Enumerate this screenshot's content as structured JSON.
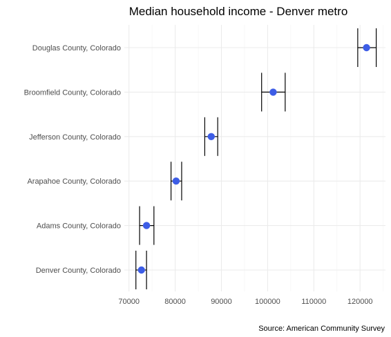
{
  "chart_data": {
    "type": "scatter",
    "title": "Median household income - Denver metro",
    "caption": "Source: American Community Survey",
    "xlabel": "",
    "ylabel": "",
    "xlim": [
      69000,
      125500
    ],
    "x_ticks": [
      70000,
      80000,
      90000,
      100000,
      110000,
      120000
    ],
    "x_tick_labels": [
      "70000",
      "80000",
      "90000",
      "100000",
      "110000",
      "120000"
    ],
    "grid": true,
    "point_color": "#3d5de6",
    "errorbar_color": "#000000",
    "points": [
      {
        "label": "Douglas County, Colorado",
        "estimate": 121400,
        "low": 119500,
        "high": 123500
      },
      {
        "label": "Broomfield County, Colorado",
        "estimate": 101200,
        "low": 98700,
        "high": 103800
      },
      {
        "label": "Jefferson County, Colorado",
        "estimate": 87800,
        "low": 86400,
        "high": 89200
      },
      {
        "label": "Arapahoe County, Colorado",
        "estimate": 80200,
        "low": 79100,
        "high": 81400
      },
      {
        "label": "Adams County, Colorado",
        "estimate": 73800,
        "low": 72300,
        "high": 75400
      },
      {
        "label": "Denver County, Colorado",
        "estimate": 72700,
        "low": 71500,
        "high": 73800
      }
    ]
  }
}
